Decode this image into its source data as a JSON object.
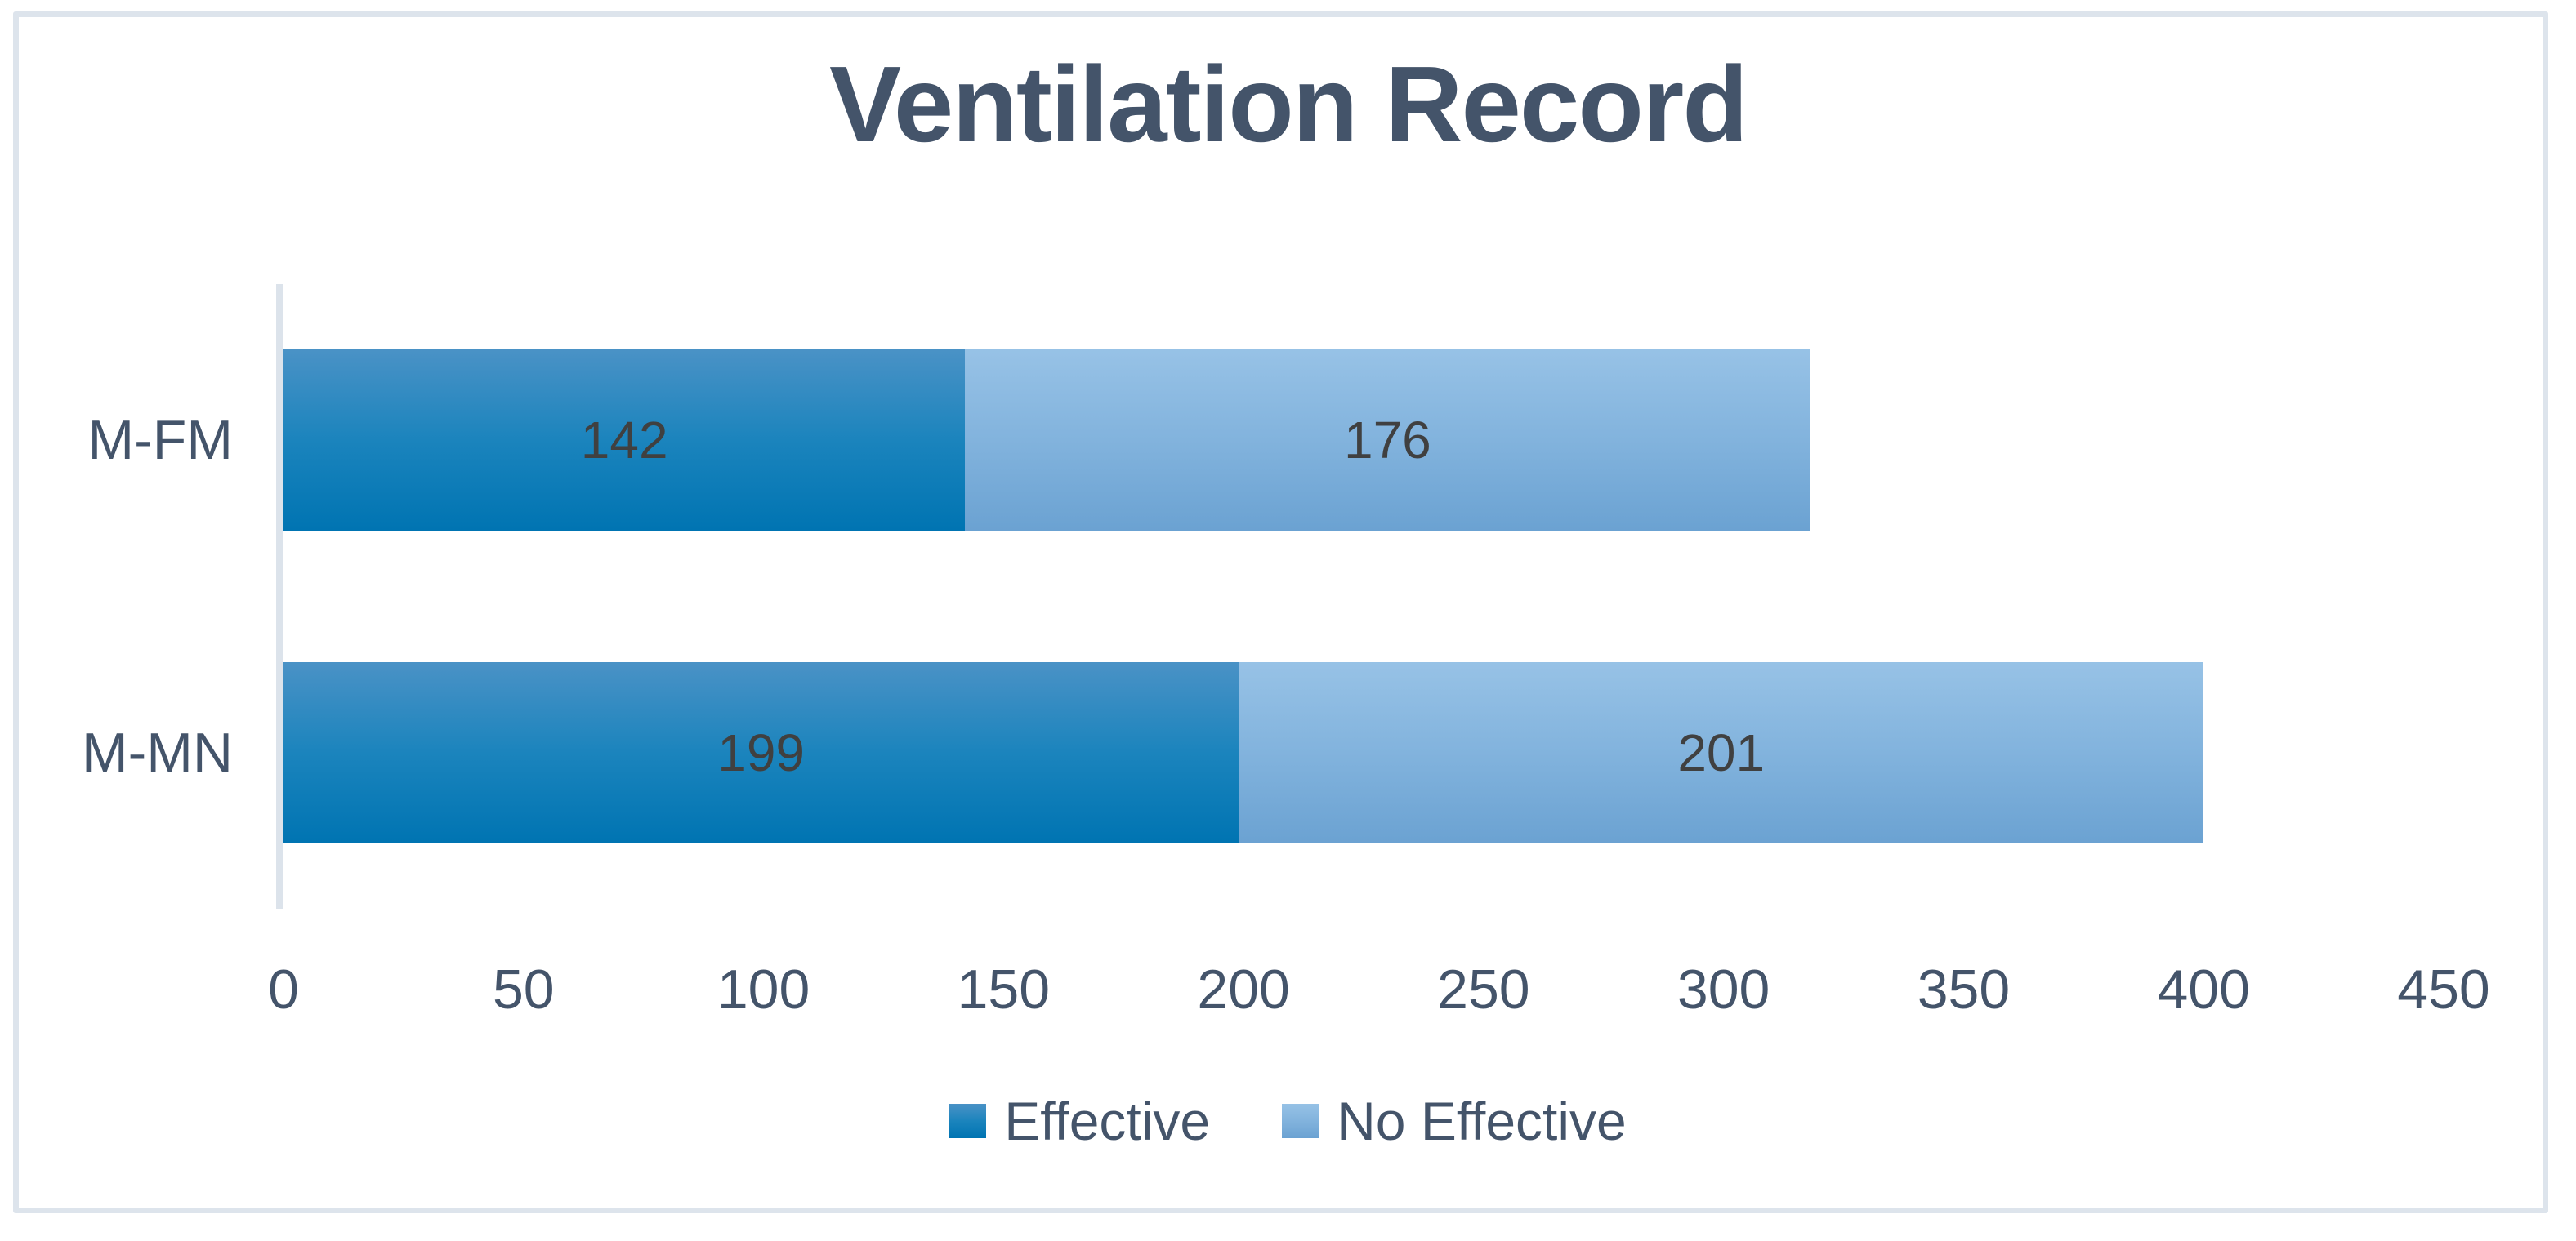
{
  "chart_data": {
    "type": "bar",
    "orientation": "horizontal",
    "stacked": true,
    "title": "Ventilation Record",
    "categories": [
      "M-FM",
      "M-MN"
    ],
    "series": [
      {
        "name": "Effective",
        "values": [
          142,
          199
        ],
        "color_top": "#4a92c6",
        "color_mid": "#1b84bd",
        "color_bottom": "#0074b2"
      },
      {
        "name": "No Effective",
        "values": [
          176,
          201
        ],
        "color_top": "#97c2e6",
        "color_mid": "#82b3dd",
        "color_bottom": "#6ba2d2"
      }
    ],
    "xlim": [
      0,
      450
    ],
    "xticks": [
      0,
      50,
      100,
      150,
      200,
      250,
      300,
      350,
      400,
      450
    ],
    "xlabel": "",
    "ylabel": "",
    "grid": false,
    "legend_position": "bottom",
    "data_labels": "inside-center",
    "colors": {
      "title_text": "#44546a",
      "axis_text": "#44546a",
      "value_text": "#404040",
      "axis_line": "#dce3eb",
      "frame_border": "#dde4ec",
      "background": "#ffffff"
    }
  }
}
